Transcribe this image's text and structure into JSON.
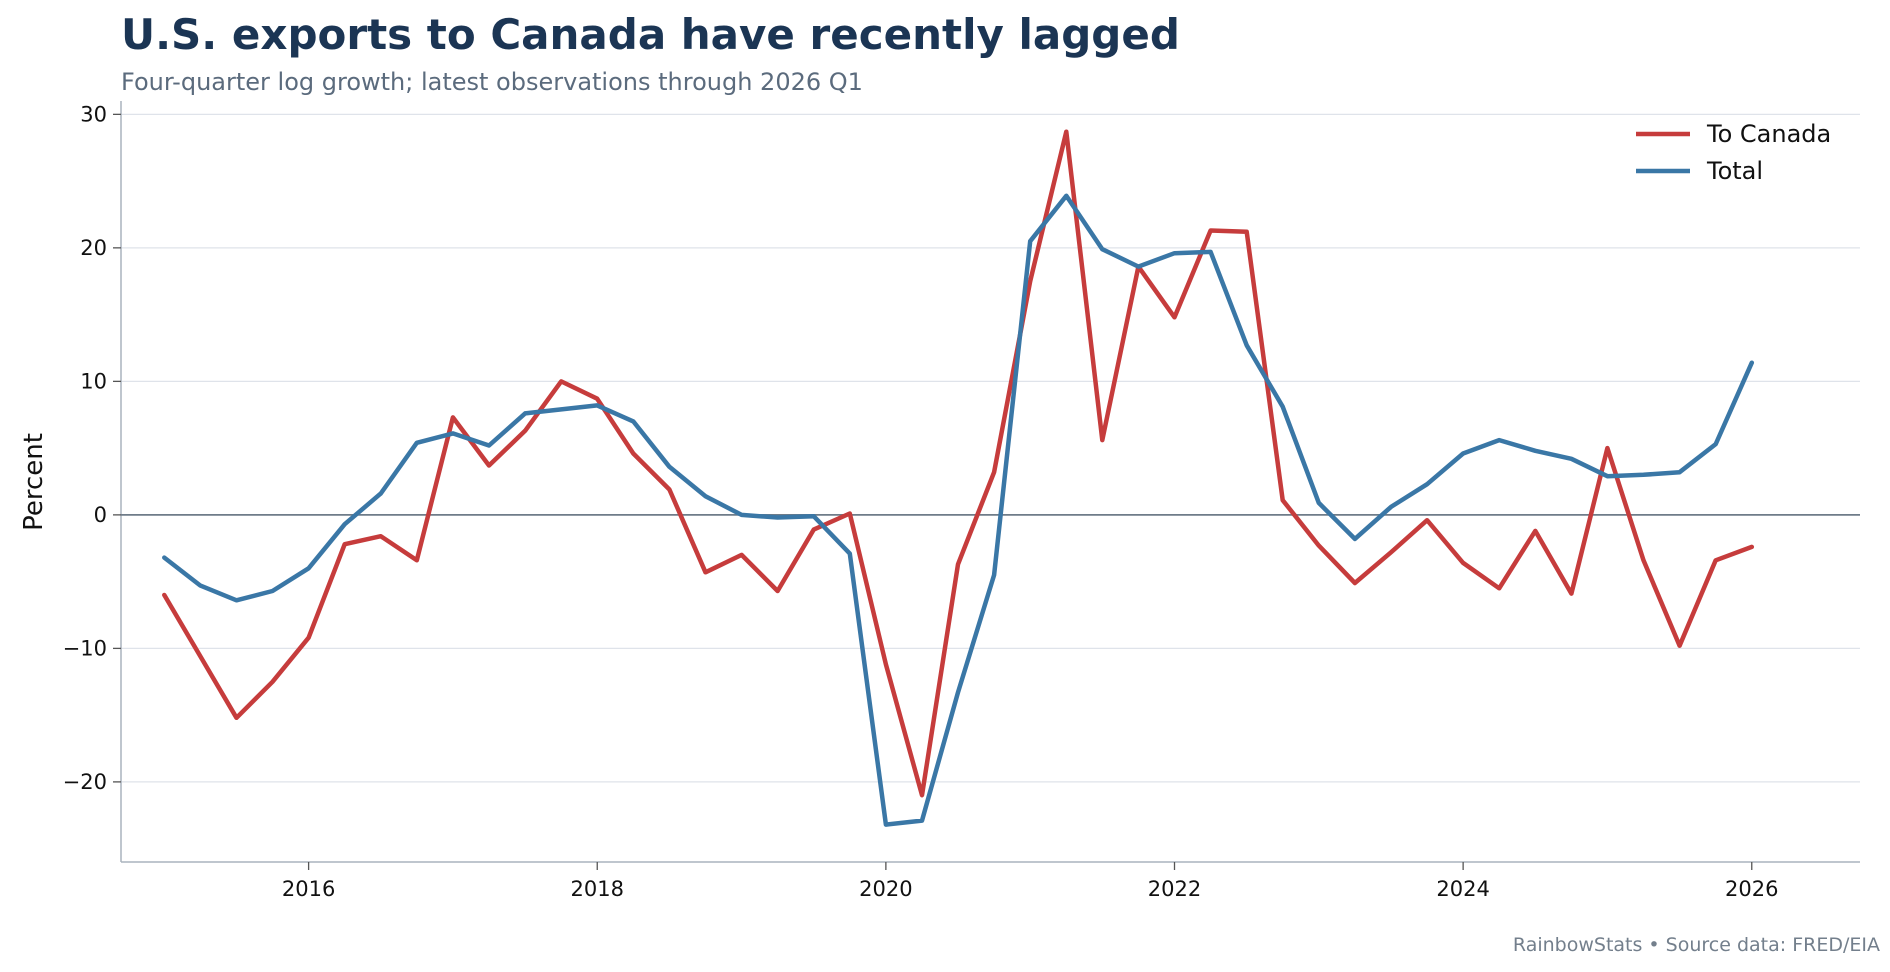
{
  "title": "U.S. exports to Canada have recently lagged",
  "subtitle": "Four-quarter log growth; latest observations through 2026 Q1",
  "credit": "RainbowStats • Source data: FRED/EIA",
  "chart_data": {
    "type": "line",
    "title": "U.S. exports to Canada have recently lagged",
    "subtitle": "Four-quarter log growth; latest observations through 2026 Q1",
    "xlabel": "",
    "ylabel": "Percent",
    "xlim": [
      2014.7,
      2026.75
    ],
    "ylim": [
      -26,
      31
    ],
    "x_ticks": [
      2016,
      2018,
      2020,
      2022,
      2024,
      2026
    ],
    "y_ticks": [
      -20,
      -10,
      0,
      10,
      20,
      30
    ],
    "y_tick_labels": [
      "−20",
      "−10",
      "0",
      "10",
      "20",
      "30"
    ],
    "grid": "horizontal",
    "zero_line": true,
    "legend_position": "top-right",
    "x": [
      2015.0,
      2015.25,
      2015.5,
      2015.75,
      2016.0,
      2016.25,
      2016.5,
      2016.75,
      2017.0,
      2017.25,
      2017.5,
      2017.75,
      2018.0,
      2018.25,
      2018.5,
      2018.75,
      2019.0,
      2019.25,
      2019.5,
      2019.75,
      2020.0,
      2020.25,
      2020.5,
      2020.75,
      2021.0,
      2021.25,
      2021.5,
      2021.75,
      2022.0,
      2022.25,
      2022.5,
      2022.75,
      2023.0,
      2023.25,
      2023.5,
      2023.75,
      2024.0,
      2024.25,
      2024.5,
      2024.75,
      2025.0,
      2025.25,
      2025.5,
      2025.75,
      2026.0
    ],
    "series": [
      {
        "name": "To Canada",
        "color": "#c63c3c",
        "values": [
          -6.0,
          -10.6,
          -15.2,
          -12.5,
          -9.2,
          -2.2,
          -1.6,
          -3.4,
          7.3,
          3.7,
          6.3,
          10.0,
          8.7,
          4.6,
          1.9,
          -4.3,
          -3.0,
          -5.7,
          -1.1,
          0.1,
          -11.2,
          -21.0,
          -3.7,
          3.2,
          17.5,
          28.7,
          5.6,
          18.6,
          14.8,
          21.3,
          21.2,
          1.1,
          -2.3,
          -5.1,
          -2.8,
          -0.4,
          -3.6,
          -5.5,
          -1.2,
          -5.9,
          5.0,
          -3.4,
          -9.8,
          -3.4,
          -2.4
        ]
      },
      {
        "name": "Total",
        "color": "#3a77a6",
        "values": [
          -3.2,
          -5.3,
          -6.4,
          -5.7,
          -4.0,
          -0.7,
          1.6,
          5.4,
          6.1,
          5.2,
          7.6,
          7.9,
          8.2,
          7.0,
          3.6,
          1.4,
          0.0,
          -0.2,
          -0.1,
          -2.9,
          -23.2,
          -22.9,
          -13.3,
          -4.5,
          20.5,
          23.9,
          19.9,
          18.6,
          19.6,
          19.7,
          12.7,
          8.1,
          0.9,
          -1.8,
          0.6,
          2.3,
          4.6,
          5.6,
          4.8,
          4.2,
          2.9,
          3.0,
          3.2,
          5.3,
          11.4
        ]
      }
    ]
  }
}
